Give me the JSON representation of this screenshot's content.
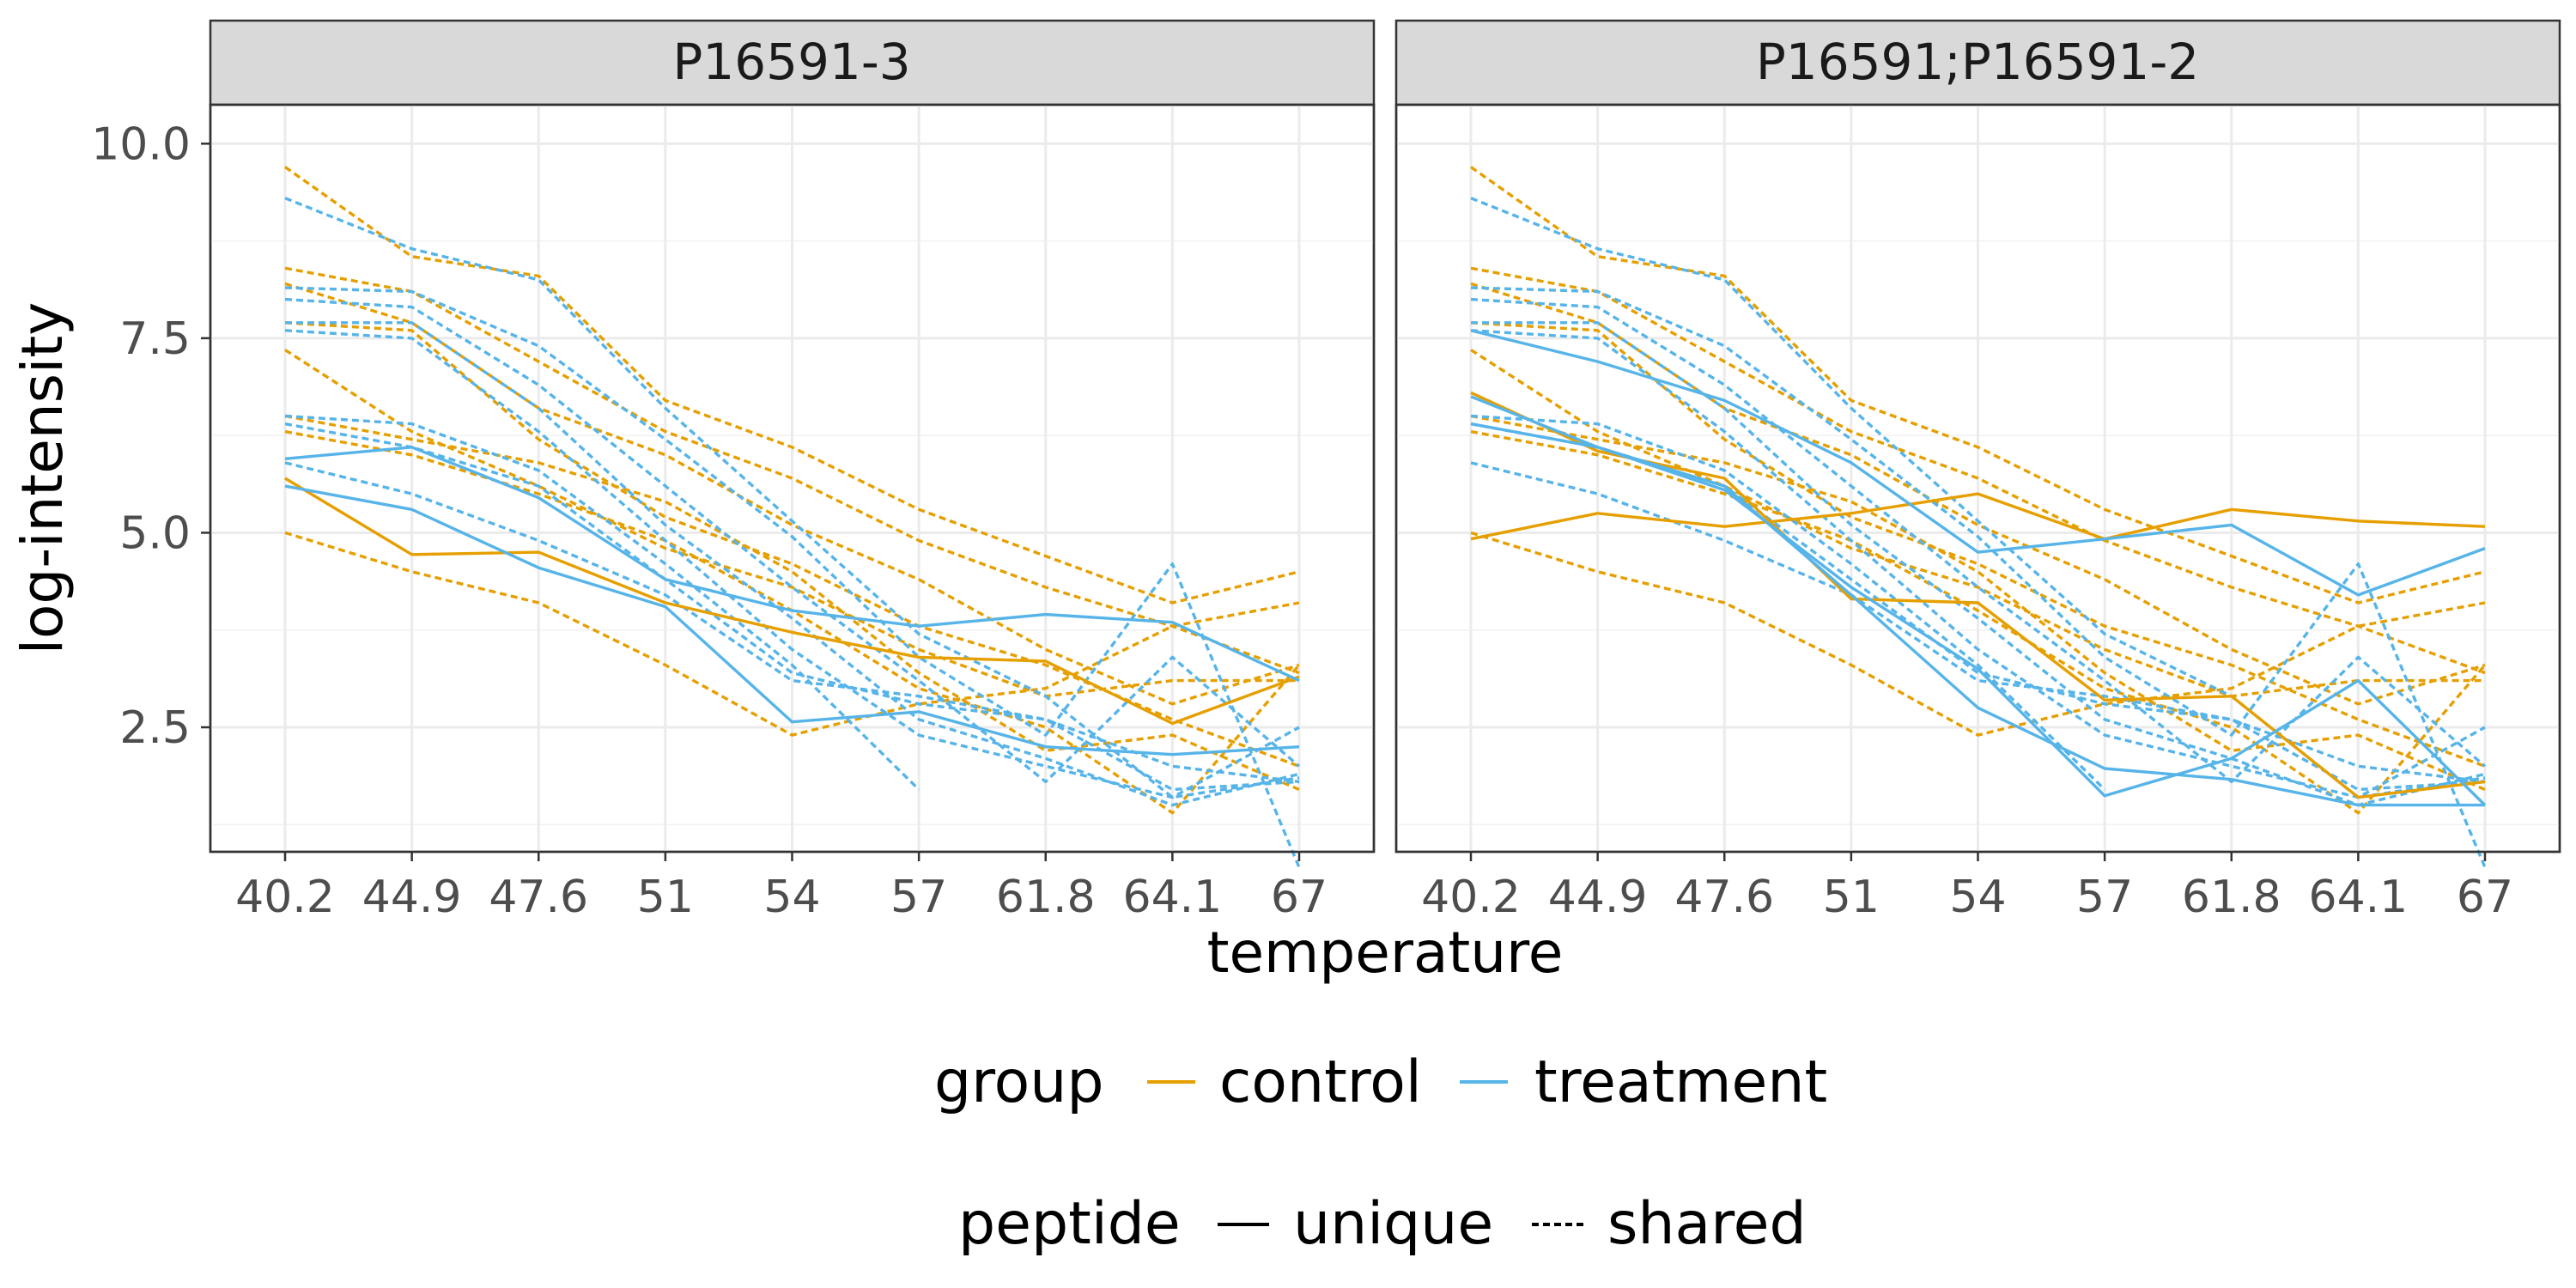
{
  "chart_data": {
    "type": "line",
    "x": [
      40.2,
      44.9,
      47.6,
      51,
      54,
      57,
      61.8,
      64.1,
      67
    ],
    "x_tick_labels": [
      "40.2",
      "44.9",
      "47.6",
      "51",
      "54",
      "57",
      "61.8",
      "64.1",
      "67"
    ],
    "x_scale": "categorical (evenly spaced)",
    "xlabel": "temperature",
    "ylabel": "log-intensity",
    "ylim": [
      0.9,
      10.5
    ],
    "y_ticks": [
      2.5,
      5.0,
      7.5,
      10.0
    ],
    "y_tick_labels": [
      "2.5",
      "5.0",
      "7.5",
      "10.0"
    ],
    "grid": true,
    "legend_position": "bottom",
    "colors": {
      "control": "#E69F00",
      "treatment": "#56B4E9"
    },
    "legend": {
      "color": {
        "title": "group",
        "entries": [
          "control",
          "treatment"
        ]
      },
      "linetype": {
        "title": "peptide",
        "entries": [
          "unique",
          "shared"
        ]
      }
    },
    "panels": [
      {
        "strip": "P16591-3",
        "series": [
          {
            "group": "control",
            "peptide": "unique",
            "values": [
              5.7,
              4.72,
              4.75,
              4.1,
              3.72,
              3.4,
              3.35,
              2.55,
              3.15
            ]
          },
          {
            "group": "treatment",
            "peptide": "unique",
            "values": [
              5.6,
              5.3,
              4.55,
              4.05,
              2.57,
              2.7,
              2.25,
              2.15,
              2.25
            ]
          },
          {
            "group": "treatment",
            "peptide": "unique",
            "values": [
              5.95,
              6.1,
              5.45,
              4.4,
              4.0,
              3.8,
              3.95,
              3.85,
              3.1
            ]
          },
          {
            "group": "control",
            "peptide": "shared",
            "values": [
              9.7,
              8.55,
              8.3,
              6.7,
              6.1,
              5.3,
              4.7,
              4.1,
              4.5
            ]
          },
          {
            "group": "control",
            "peptide": "shared",
            "values": [
              8.4,
              8.1,
              7.2,
              6.3,
              5.7,
              4.9,
              4.3,
              3.8,
              3.2
            ]
          },
          {
            "group": "control",
            "peptide": "shared",
            "values": [
              8.2,
              7.7,
              6.6,
              6.0,
              5.1,
              4.4,
              3.5,
              2.8,
              3.3
            ]
          },
          {
            "group": "control",
            "peptide": "shared",
            "values": [
              7.7,
              7.6,
              6.2,
              5.2,
              4.6,
              3.8,
              3.3,
              2.6,
              2.0
            ]
          },
          {
            "group": "control",
            "peptide": "shared",
            "values": [
              7.35,
              6.3,
              5.6,
              4.8,
              4.3,
              3.5,
              2.9,
              3.1,
              3.1
            ]
          },
          {
            "group": "control",
            "peptide": "shared",
            "values": [
              6.5,
              6.2,
              5.9,
              5.4,
              4.5,
              3.2,
              2.2,
              2.4,
              1.7
            ]
          },
          {
            "group": "control",
            "peptide": "shared",
            "values": [
              6.3,
              6.0,
              5.5,
              4.9,
              4.0,
              3.0,
              2.5,
              1.4,
              3.3
            ]
          },
          {
            "group": "control",
            "peptide": "shared",
            "values": [
              5.0,
              4.5,
              4.1,
              3.3,
              2.4,
              2.8,
              3.0,
              3.8,
              4.1
            ]
          },
          {
            "group": "treatment",
            "peptide": "shared",
            "values": [
              9.3,
              8.65,
              8.25,
              6.6,
              5.15,
              3.7,
              2.9,
              1.6,
              1.85
            ]
          },
          {
            "group": "treatment",
            "peptide": "shared",
            "values": [
              8.15,
              8.1,
              7.4,
              6.2,
              4.95,
              3.4,
              2.4,
              4.6,
              0.7
            ]
          },
          {
            "group": "treatment",
            "peptide": "shared",
            "values": [
              8.0,
              7.9,
              6.9,
              5.6,
              4.3,
              3.1,
              1.8,
              3.4,
              2.0
            ]
          },
          {
            "group": "treatment",
            "peptide": "shared",
            "values": [
              7.7,
              7.7,
              6.6,
              5.1,
              3.9,
              2.6,
              2.1,
              1.5,
              1.9
            ]
          },
          {
            "group": "treatment",
            "peptide": "shared",
            "values": [
              7.6,
              7.5,
              6.3,
              4.9,
              3.5,
              2.4,
              2.0,
              1.6,
              2.5
            ]
          },
          {
            "group": "treatment",
            "peptide": "shared",
            "values": [
              6.5,
              6.4,
              5.8,
              4.6,
              3.3,
              1.7,
              null,
              null,
              null
            ]
          },
          {
            "group": "treatment",
            "peptide": "shared",
            "values": [
              6.4,
              6.1,
              5.6,
              4.4,
              3.2,
              2.8,
              2.6,
              1.7,
              1.8
            ]
          },
          {
            "group": "treatment",
            "peptide": "shared",
            "values": [
              5.9,
              5.5,
              4.9,
              4.2,
              3.1,
              2.9,
              2.6,
              2.0,
              1.8
            ]
          }
        ]
      },
      {
        "strip": "P16591;P16591-2",
        "series": [
          {
            "group": "control",
            "peptide": "unique",
            "values": [
              4.92,
              5.25,
              5.08,
              5.25,
              5.5,
              4.92,
              5.3,
              5.15,
              5.08
            ]
          },
          {
            "group": "control",
            "peptide": "unique",
            "values": [
              6.8,
              6.05,
              5.7,
              4.15,
              4.1,
              2.85,
              2.9,
              1.6,
              1.8
            ]
          },
          {
            "group": "treatment",
            "peptide": "unique",
            "values": [
              7.6,
              7.2,
              6.7,
              5.9,
              4.75,
              4.92,
              5.1,
              4.2,
              4.8
            ]
          },
          {
            "group": "treatment",
            "peptide": "unique",
            "values": [
              6.75,
              6.1,
              5.55,
              4.3,
              3.25,
              1.62,
              2.1,
              3.1,
              1.5
            ]
          },
          {
            "group": "treatment",
            "peptide": "unique",
            "values": [
              6.4,
              6.1,
              5.6,
              4.2,
              2.75,
              1.97,
              1.83,
              1.5,
              1.5
            ]
          },
          {
            "group": "control",
            "peptide": "shared",
            "values": [
              9.7,
              8.55,
              8.3,
              6.7,
              6.1,
              5.3,
              4.7,
              4.1,
              4.5
            ]
          },
          {
            "group": "control",
            "peptide": "shared",
            "values": [
              8.4,
              8.1,
              7.2,
              6.3,
              5.7,
              4.9,
              4.3,
              3.8,
              3.2
            ]
          },
          {
            "group": "control",
            "peptide": "shared",
            "values": [
              8.2,
              7.7,
              6.6,
              6.0,
              5.1,
              4.4,
              3.5,
              2.8,
              3.3
            ]
          },
          {
            "group": "control",
            "peptide": "shared",
            "values": [
              7.7,
              7.6,
              6.2,
              5.2,
              4.6,
              3.8,
              3.3,
              2.6,
              2.0
            ]
          },
          {
            "group": "control",
            "peptide": "shared",
            "values": [
              7.35,
              6.3,
              5.6,
              4.8,
              4.3,
              3.5,
              2.9,
              3.1,
              3.1
            ]
          },
          {
            "group": "control",
            "peptide": "shared",
            "values": [
              6.5,
              6.2,
              5.9,
              5.4,
              4.5,
              3.2,
              2.2,
              2.4,
              1.7
            ]
          },
          {
            "group": "control",
            "peptide": "shared",
            "values": [
              6.3,
              6.0,
              5.5,
              4.9,
              4.0,
              3.0,
              2.5,
              1.4,
              3.3
            ]
          },
          {
            "group": "control",
            "peptide": "shared",
            "values": [
              5.0,
              4.5,
              4.1,
              3.3,
              2.4,
              2.8,
              3.0,
              3.8,
              4.1
            ]
          },
          {
            "group": "treatment",
            "peptide": "shared",
            "values": [
              9.3,
              8.65,
              8.25,
              6.6,
              5.15,
              3.7,
              2.9,
              1.6,
              1.85
            ]
          },
          {
            "group": "treatment",
            "peptide": "shared",
            "values": [
              8.15,
              8.1,
              7.4,
              6.2,
              4.95,
              3.4,
              2.4,
              4.6,
              0.7
            ]
          },
          {
            "group": "treatment",
            "peptide": "shared",
            "values": [
              8.0,
              7.9,
              6.9,
              5.6,
              4.3,
              3.1,
              1.8,
              3.4,
              2.0
            ]
          },
          {
            "group": "treatment",
            "peptide": "shared",
            "values": [
              7.7,
              7.7,
              6.6,
              5.1,
              3.9,
              2.6,
              2.1,
              1.5,
              1.9
            ]
          },
          {
            "group": "treatment",
            "peptide": "shared",
            "values": [
              7.6,
              7.5,
              6.3,
              4.9,
              3.5,
              2.4,
              2.0,
              1.6,
              2.5
            ]
          },
          {
            "group": "treatment",
            "peptide": "shared",
            "values": [
              6.5,
              6.4,
              5.8,
              4.6,
              3.3,
              1.7,
              null,
              null,
              null
            ]
          },
          {
            "group": "treatment",
            "peptide": "shared",
            "values": [
              6.4,
              6.1,
              5.6,
              4.4,
              3.2,
              2.8,
              2.6,
              1.7,
              1.8
            ]
          },
          {
            "group": "treatment",
            "peptide": "shared",
            "values": [
              5.9,
              5.5,
              4.9,
              4.2,
              3.1,
              2.9,
              2.6,
              2.0,
              1.8
            ]
          }
        ]
      }
    ]
  }
}
